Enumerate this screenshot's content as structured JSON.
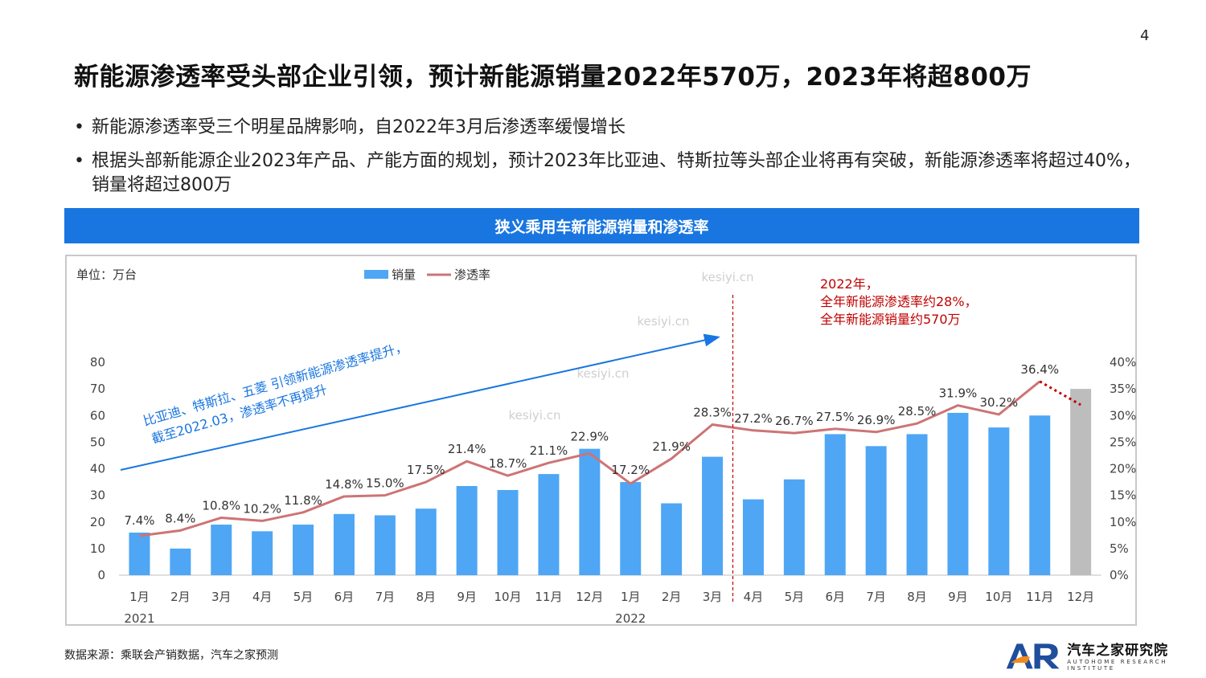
{
  "page": {
    "number": "4",
    "headline": "新能源渗透率受头部企业引领，预计新能源销量2022年570万，2023年将超800万",
    "bullets": [
      "新能源渗透率受三个明星品牌影响，自2022年3月后渗透率缓慢增长",
      "根据头部新能源企业2023年产品、产能方面的规划，预计2023年比亚迪、特斯拉等头部企业将再有突破，新能源渗透率将超过40%，销量将超过800万"
    ],
    "source": "数据来源：乘联会产销数据，汽车之家预测",
    "logo": {
      "name": "汽车之家研究院",
      "subtitle": "AUTOHOME RESEARCH INSTITUTE",
      "mark": "AR"
    }
  },
  "chart_data": {
    "type": "bar+line",
    "title": "狭义乘用车新能源销量和渗透率",
    "unit_label": "单位：万台",
    "legend": [
      "销量",
      "渗透率"
    ],
    "legend_position": "top-center",
    "categories": [
      "1月",
      "2月",
      "3月",
      "4月",
      "5月",
      "6月",
      "7月",
      "8月",
      "9月",
      "10月",
      "11月",
      "12月",
      "1月",
      "2月",
      "3月",
      "4月",
      "5月",
      "6月",
      "7月",
      "8月",
      "9月",
      "10月",
      "11月",
      "12月"
    ],
    "year_labels": [
      {
        "label": "2021",
        "index": 0
      },
      {
        "label": "2022",
        "index": 12
      }
    ],
    "series": [
      {
        "name": "销量",
        "kind": "bar",
        "axis": "left",
        "values": [
          16,
          10,
          19,
          16.5,
          19,
          23,
          22.5,
          25,
          33.5,
          32,
          38,
          47.5,
          35,
          27,
          44.5,
          28.5,
          36,
          53,
          48.5,
          53,
          61,
          55.5,
          60,
          70
        ],
        "color": "#4ea6f5",
        "forecast_color": "#bdbdbd",
        "forecast_from_index": 23
      },
      {
        "name": "渗透率",
        "kind": "line",
        "axis": "right",
        "values": [
          7.4,
          8.4,
          10.8,
          10.2,
          11.8,
          14.8,
          15.0,
          17.5,
          21.4,
          18.7,
          21.1,
          22.9,
          17.2,
          21.9,
          28.3,
          27.2,
          26.7,
          27.5,
          26.9,
          28.5,
          31.9,
          30.2,
          36.4,
          32
        ],
        "labels": [
          "7.4%",
          "8.4%",
          "10.8%",
          "10.2%",
          "11.8%",
          "14.8%",
          "15.0%",
          "17.5%",
          "21.4%",
          "18.7%",
          "21.1%",
          "22.9%",
          "17.2%",
          "21.9%",
          "28.3%",
          "27.2%",
          "26.7%",
          "27.5%",
          "26.9%",
          "28.5%",
          "31.9%",
          "30.2%",
          "36.4%",
          ""
        ],
        "color": "#cd7475",
        "forecast_color": "#c00000",
        "forecast_from_index": 22
      }
    ],
    "y_left": {
      "ticks": [
        "0",
        "10",
        "20",
        "30",
        "40",
        "50",
        "60",
        "70",
        "80"
      ],
      "min": 0,
      "max": 80
    },
    "y_right": {
      "ticks": [
        "0%",
        "5%",
        "10%",
        "15%",
        "20%",
        "25%",
        "30%",
        "35%",
        "40%"
      ],
      "min": 0,
      "max": 40
    },
    "grid": false,
    "annotations": {
      "trend_text": [
        "比亚迪、特斯拉、五菱 引领新能源渗透率提升，",
        "截至2022.03，渗透率不再提升"
      ],
      "note_2022": [
        "2022年，",
        "全年新能源渗透率约28%，",
        "全年新能源销量约570万"
      ],
      "divider_after_index": 14
    },
    "watermark": "kesiyi.cn"
  }
}
